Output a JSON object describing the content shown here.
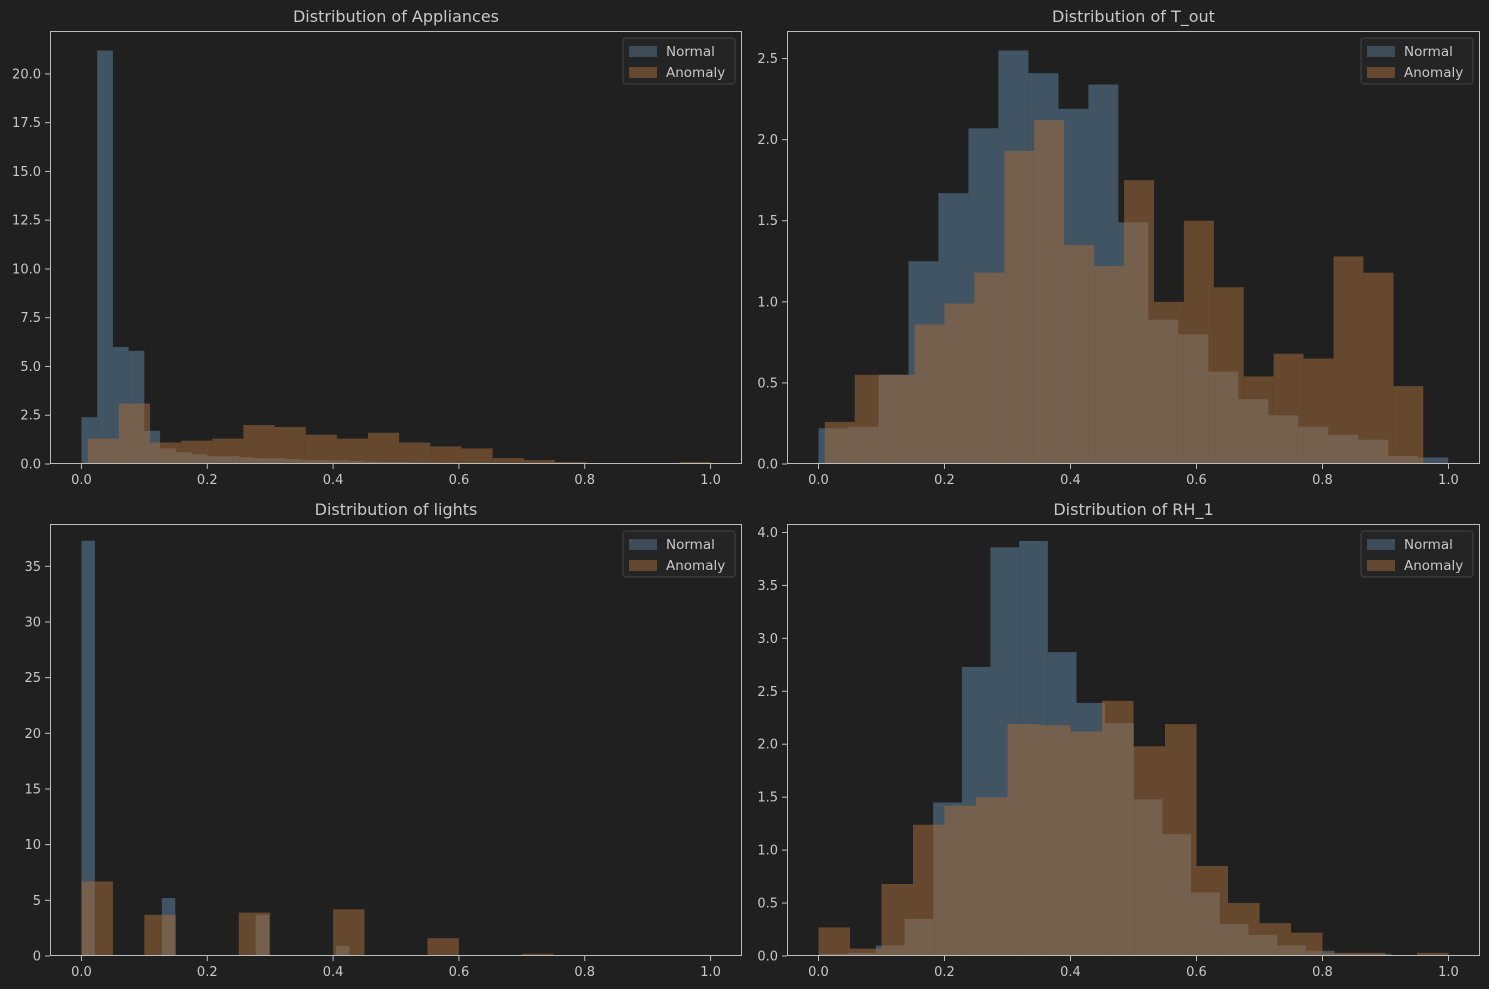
{
  "colors": {
    "background": "#202020",
    "axes": "#bdbdbd",
    "text": "#c8c8c8",
    "normal": "#3e4c58",
    "anomaly": "#644830",
    "overlap": "#6b5a4c"
  },
  "legend_labels": [
    "Normal",
    "Anomaly"
  ],
  "chart_data": [
    {
      "type": "histogram",
      "title": "Distribution of Appliances",
      "xlim": [
        -0.05,
        1.05
      ],
      "ylim": [
        0,
        22.2
      ],
      "xticks": [
        "0.0",
        "0.2",
        "0.4",
        "0.6",
        "0.8",
        "1.0"
      ],
      "xtick_values": [
        0,
        0.2,
        0.4,
        0.6,
        0.8,
        1.0
      ],
      "yticks": [
        "0.0",
        "2.5",
        "5.0",
        "7.5",
        "10.0",
        "12.5",
        "15.0",
        "17.5",
        "20.0"
      ],
      "ytick_values": [
        0,
        2.5,
        5,
        7.5,
        10,
        12.5,
        15,
        17.5,
        20
      ],
      "legend": "top-right",
      "series": [
        {
          "name": "Normal",
          "start": 0.0,
          "width": 0.025,
          "values": [
            2.4,
            21.2,
            6.0,
            5.8,
            1.7,
            0.8,
            0.6,
            0.5,
            0.4,
            0.4,
            0.35,
            0.3,
            0.3,
            0.25,
            0.2,
            0.2,
            0.18,
            0.15,
            0.12,
            0.1,
            0.1,
            0.08,
            0.07,
            0.06,
            0.05,
            0.04,
            0.03,
            0.02,
            0.02,
            0.02,
            0.01,
            0.01,
            0.01,
            0.01,
            0.01,
            0.01,
            0.01,
            0.01,
            0.01,
            0.01
          ]
        },
        {
          "name": "Anomaly",
          "start": 0.01,
          "width": 0.0495,
          "values": [
            1.3,
            3.1,
            1.1,
            1.2,
            1.3,
            2.0,
            1.9,
            1.5,
            1.3,
            1.6,
            1.1,
            0.9,
            0.8,
            0.3,
            0.2,
            0.1,
            0.05,
            0.05,
            0.02,
            0.1
          ]
        }
      ]
    },
    {
      "type": "histogram",
      "title": "Distribution of T_out",
      "xlim": [
        -0.05,
        1.05
      ],
      "ylim": [
        0,
        2.67
      ],
      "xticks": [
        "0.0",
        "0.2",
        "0.4",
        "0.6",
        "0.8",
        "1.0"
      ],
      "xtick_values": [
        0,
        0.2,
        0.4,
        0.6,
        0.8,
        1.0
      ],
      "yticks": [
        "0.0",
        "0.5",
        "1.0",
        "1.5",
        "2.0",
        "2.5"
      ],
      "ytick_values": [
        0,
        0.5,
        1.0,
        1.5,
        2.0,
        2.5
      ],
      "legend": "top-right",
      "series": [
        {
          "name": "Normal",
          "start": 0.0,
          "width": 0.0476,
          "values": [
            0.22,
            0.23,
            0.55,
            1.25,
            1.67,
            2.07,
            2.55,
            2.41,
            2.19,
            2.34,
            1.49,
            0.89,
            0.8,
            0.57,
            0.4,
            0.3,
            0.23,
            0.18,
            0.15,
            0.05,
            0.04
          ]
        },
        {
          "name": "Anomaly",
          "start": 0.01,
          "width": 0.0475,
          "values": [
            0.26,
            0.55,
            0.55,
            0.86,
            0.99,
            1.18,
            1.93,
            2.12,
            1.35,
            1.22,
            1.75,
            1.0,
            1.5,
            1.09,
            0.54,
            0.68,
            0.65,
            1.28,
            1.18,
            0.48
          ]
        }
      ]
    },
    {
      "type": "histogram",
      "title": "Distribution of lights",
      "xlim": [
        -0.05,
        1.05
      ],
      "ylim": [
        0,
        38.8
      ],
      "xticks": [
        "0.0",
        "0.2",
        "0.4",
        "0.6",
        "0.8",
        "1.0"
      ],
      "xtick_values": [
        0,
        0.2,
        0.4,
        0.6,
        0.8,
        1.0
      ],
      "yticks": [
        "0",
        "5",
        "10",
        "15",
        "20",
        "25",
        "30",
        "35"
      ],
      "ytick_values": [
        0,
        5,
        10,
        15,
        20,
        25,
        30,
        35
      ],
      "legend": "top-right",
      "series": [
        {
          "name": "Normal",
          "start": 0.0,
          "width": 0.0213,
          "values": [
            37.3,
            0,
            0,
            0,
            0,
            0,
            5.2,
            0,
            0,
            0,
            0,
            0,
            0,
            3.7,
            0,
            0,
            0,
            0,
            0,
            0.9,
            0,
            0,
            0,
            0,
            0,
            0,
            0,
            0,
            0,
            0,
            0,
            0,
            0,
            0,
            0,
            0,
            0,
            0,
            0,
            0,
            0,
            0,
            0,
            0,
            0,
            0,
            0
          ]
        },
        {
          "name": "Anomaly",
          "start": 0.0,
          "width": 0.05,
          "values": [
            6.7,
            0,
            3.7,
            0,
            0,
            3.9,
            0,
            0,
            4.2,
            0,
            0,
            1.6,
            0,
            0,
            0.2,
            0,
            0,
            0,
            0,
            0
          ]
        }
      ]
    },
    {
      "type": "histogram",
      "title": "Distribution of RH_1",
      "xlim": [
        -0.05,
        1.05
      ],
      "ylim": [
        0,
        4.08
      ],
      "xticks": [
        "0.0",
        "0.2",
        "0.4",
        "0.6",
        "0.8",
        "1.0"
      ],
      "xtick_values": [
        0,
        0.2,
        0.4,
        0.6,
        0.8,
        1.0
      ],
      "yticks": [
        "0.0",
        "0.5",
        "1.0",
        "1.5",
        "2.0",
        "2.5",
        "3.0",
        "3.5",
        "4.0"
      ],
      "ytick_values": [
        0,
        0.5,
        1.0,
        1.5,
        2.0,
        2.5,
        3.0,
        3.5,
        4.0
      ],
      "legend": "top-right",
      "series": [
        {
          "name": "Normal",
          "start": 0.0,
          "width": 0.0455,
          "values": [
            0.02,
            0.03,
            0.1,
            0.35,
            1.45,
            2.73,
            3.86,
            3.92,
            2.87,
            2.39,
            2.2,
            1.48,
            1.15,
            0.6,
            0.3,
            0.2,
            0.1,
            0.05,
            0.02,
            0.02,
            0.01,
            0.01
          ]
        },
        {
          "name": "Anomaly",
          "start": 0.0,
          "width": 0.05,
          "values": [
            0.27,
            0.07,
            0.68,
            1.24,
            1.42,
            1.5,
            2.19,
            2.18,
            2.12,
            2.41,
            1.98,
            2.19,
            0.85,
            0.5,
            0.31,
            0.22,
            0.03,
            0.03,
            0,
            0.03
          ]
        }
      ]
    }
  ]
}
